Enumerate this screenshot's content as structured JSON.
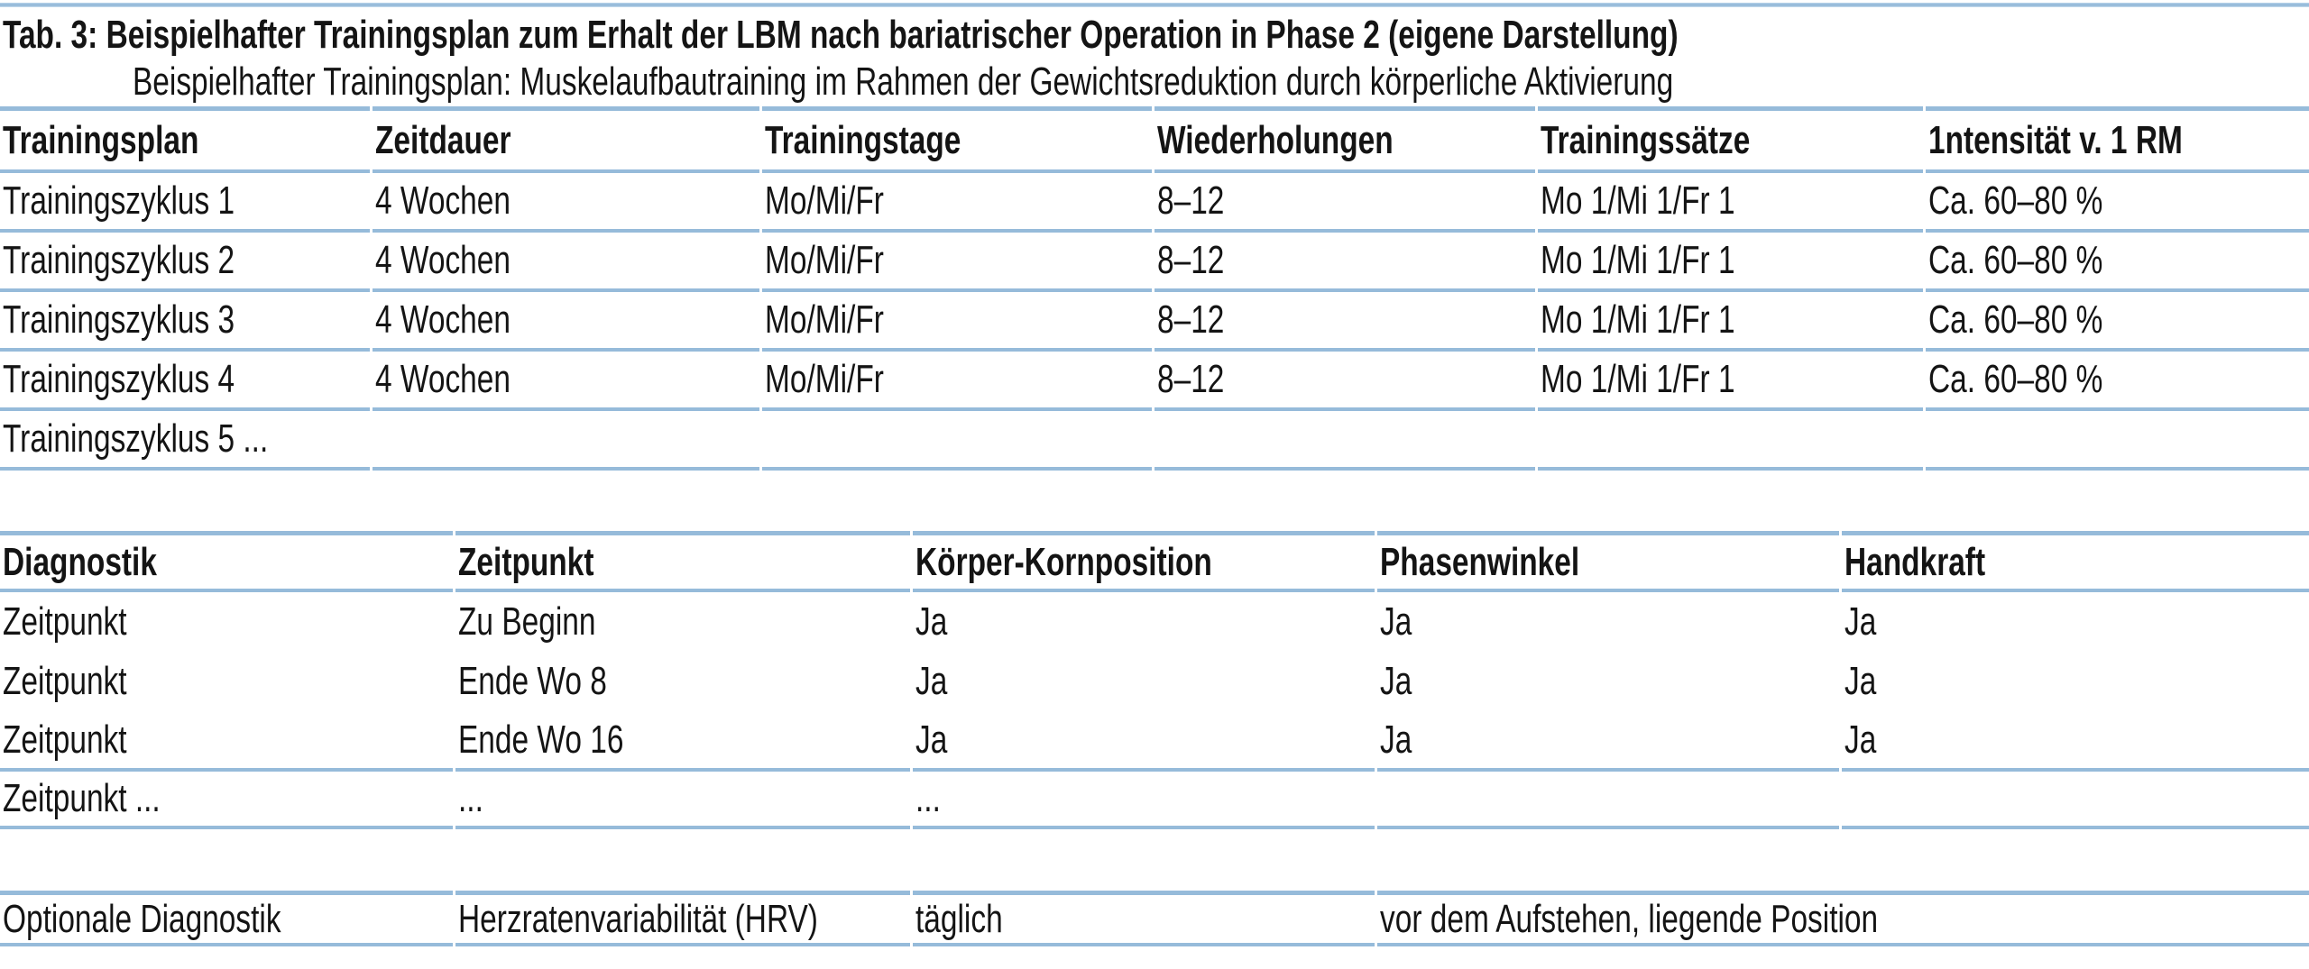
{
  "colors": {
    "rule": "#96bbda",
    "text": "#141414",
    "background": "#ffffff"
  },
  "caption": {
    "line1": "Tab. 3: Beispielhafter Trainingsplan zum Erhalt der LBM nach bariatrischer Operation in Phase 2 (eigene Darstellung)",
    "line2": "Beispielhafter Trainingsplan: Muskelaufbautraining im Rahmen der Gewichtsreduktion durch körperliche Aktivierung"
  },
  "training_table": {
    "columns": [
      "Trainingsplan",
      "Zeitdauer",
      "Trainingstage",
      "Wiederholungen",
      "Trainingssätze",
      "1ntensität v. 1 RM"
    ],
    "rows": [
      [
        "Trainingszyklus 1",
        "4 Wochen",
        "Mo/Mi/Fr",
        "8–12",
        "Mo 1/Mi 1/Fr 1",
        "Ca. 60–80 %"
      ],
      [
        "Trainingszyklus 2",
        "4 Wochen",
        "Mo/Mi/Fr",
        "8–12",
        "Mo 1/Mi 1/Fr 1",
        "Ca. 60–80 %"
      ],
      [
        "Trainingszyklus 3",
        "4 Wochen",
        "Mo/Mi/Fr",
        "8–12",
        "Mo 1/Mi 1/Fr 1",
        "Ca. 60–80 %"
      ],
      [
        "Trainingszyklus 4",
        "4 Wochen",
        "Mo/Mi/Fr",
        "8–12",
        "Mo 1/Mi 1/Fr 1",
        "Ca. 60–80 %"
      ],
      [
        "Trainingszyklus 5 ...",
        "",
        "",
        "",
        "",
        ""
      ]
    ]
  },
  "diagnostik_table": {
    "columns": [
      "Diagnostik",
      "Zeitpunkt",
      "Körper-Kornposition",
      "Phasenwinkel",
      "Handkraft"
    ],
    "rows": [
      [
        "Zeitpunkt",
        "Zu Beginn",
        "Ja",
        "Ja",
        "Ja"
      ],
      [
        "Zeitpunkt",
        "Ende Wo 8",
        "Ja",
        "Ja",
        "Ja"
      ],
      [
        "Zeitpunkt",
        "Ende Wo 16",
        "Ja",
        "Ja",
        "Ja"
      ],
      [
        "Zeitpunkt ...",
        "...",
        "...",
        "",
        ""
      ]
    ]
  },
  "optional_table": {
    "rows": [
      [
        "Optionale Diagnostik",
        "Herzratenvariabilität (HRV)",
        "täglich",
        "vor dem Aufstehen, liegende Position"
      ]
    ]
  }
}
